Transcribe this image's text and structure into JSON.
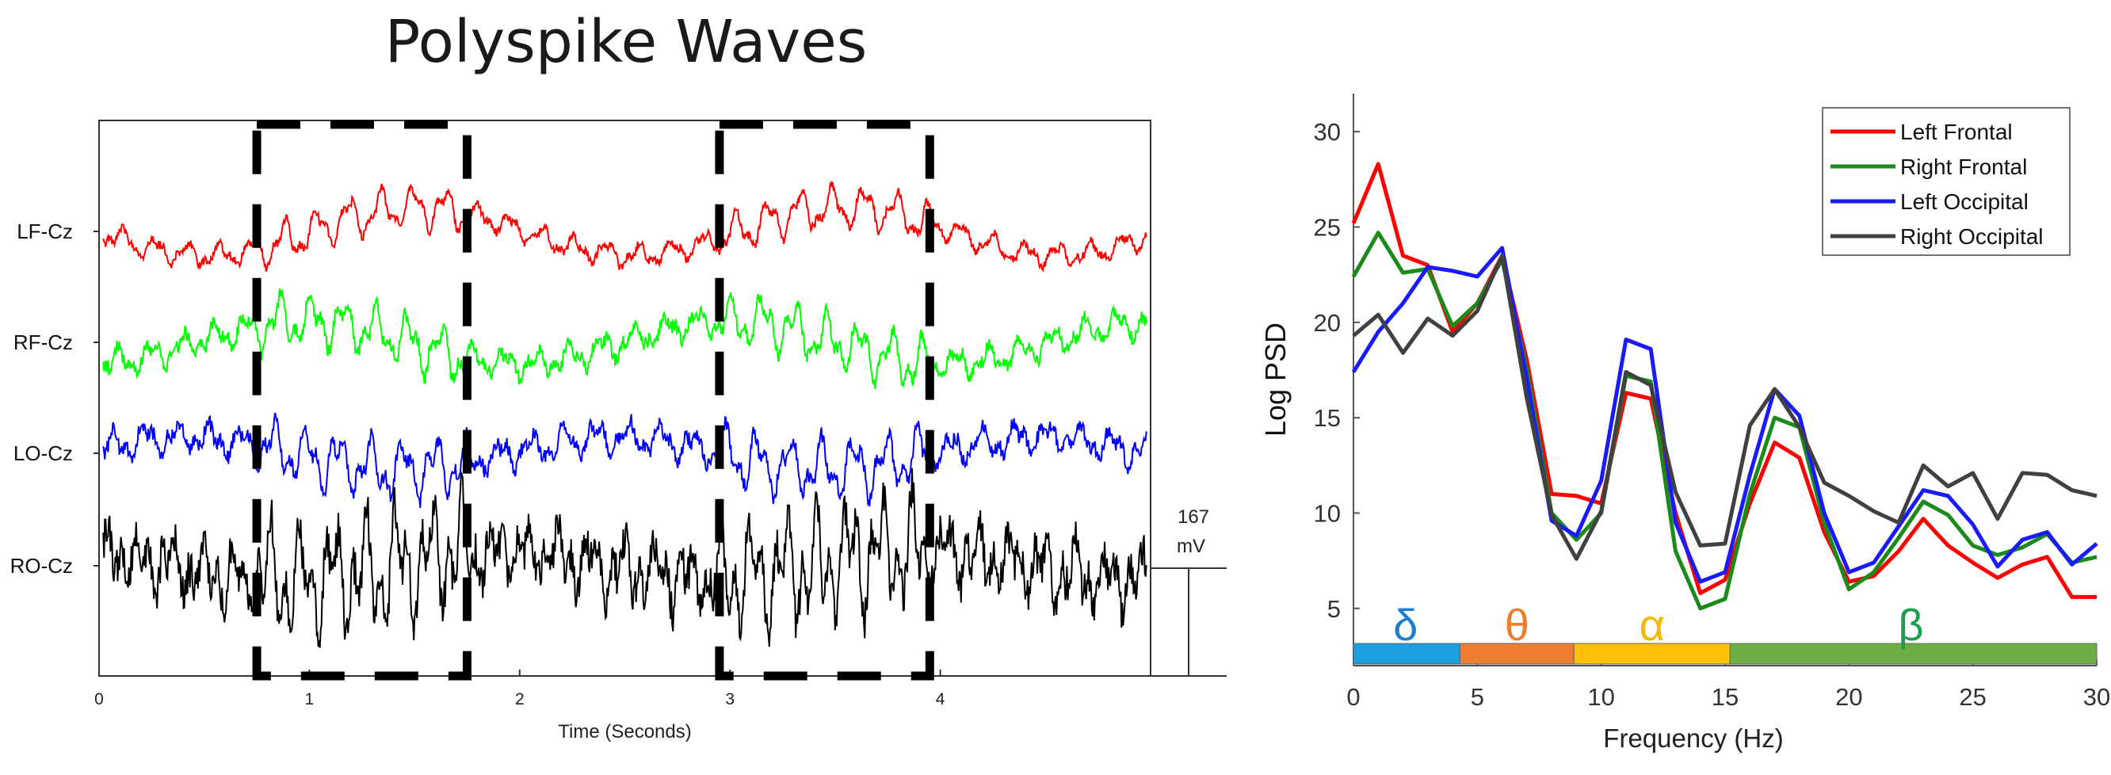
{
  "title": "Polyspike Waves",
  "chart_data": [
    {
      "type": "line",
      "xlabel": "Time (Seconds)",
      "ylabel": "",
      "xlim": [
        0,
        5
      ],
      "xticks": [
        0,
        1,
        2,
        3,
        4
      ],
      "grid": false,
      "channels": [
        {
          "label": "LF-Cz",
          "color": "#ff0000"
        },
        {
          "label": "RF-Cz",
          "color": "#00ff00"
        },
        {
          "label": "LO-Cz",
          "color": "#0000ff"
        },
        {
          "label": "RO-Cz",
          "color": "#000000"
        }
      ],
      "highlight_windows_seconds": [
        [
          0.75,
          1.75
        ],
        [
          2.95,
          3.95
        ]
      ],
      "scale_bar": {
        "value": "167",
        "unit": "mV"
      }
    },
    {
      "type": "line",
      "xlabel": "Frequency (Hz)",
      "ylabel": "Log PSD",
      "xlim": [
        0,
        30
      ],
      "ylim": [
        2,
        32
      ],
      "xticks": [
        0,
        5,
        10,
        15,
        20,
        25,
        30
      ],
      "yticks": [
        5,
        10,
        15,
        20,
        25,
        30
      ],
      "grid": false,
      "legend_position": "top-right",
      "x": [
        0,
        1,
        2,
        3,
        4,
        5,
        6,
        7,
        8,
        9,
        10,
        11,
        12,
        13,
        14,
        15,
        16,
        17,
        18,
        19,
        20,
        21,
        22,
        23,
        24,
        25,
        26,
        27,
        28,
        29,
        30
      ],
      "series": [
        {
          "name": "Left Frontal",
          "color": "#ff0000",
          "values": [
            25.2,
            28.3,
            23.5,
            23.0,
            19.5,
            21.0,
            23.5,
            18.0,
            11.0,
            10.9,
            10.5,
            16.3,
            16.0,
            10.0,
            5.8,
            6.5,
            10.5,
            13.7,
            12.9,
            9.0,
            6.4,
            6.7,
            8.0,
            9.7,
            8.3,
            7.4,
            6.6,
            7.3,
            7.7,
            5.6,
            5.6
          ]
        },
        {
          "name": "Right Frontal",
          "color": "#1a8a1a",
          "values": [
            22.4,
            24.7,
            22.6,
            22.8,
            19.8,
            21.0,
            23.3,
            17.5,
            10.0,
            8.6,
            10.0,
            17.2,
            16.9,
            8.0,
            5.0,
            5.5,
            11.0,
            15.0,
            14.5,
            9.5,
            6.0,
            6.9,
            8.7,
            10.6,
            9.9,
            8.3,
            7.8,
            8.2,
            8.9,
            7.4,
            7.7
          ]
        },
        {
          "name": "Left Occipital",
          "color": "#1a1aff",
          "values": [
            17.4,
            19.5,
            21.0,
            22.9,
            22.7,
            22.4,
            23.9,
            17.0,
            9.6,
            8.8,
            11.7,
            19.1,
            18.6,
            9.5,
            6.4,
            6.9,
            12.0,
            16.5,
            15.1,
            10.0,
            6.9,
            7.4,
            9.3,
            11.2,
            10.9,
            9.4,
            7.2,
            8.6,
            9.0,
            7.3,
            8.4
          ]
        },
        {
          "name": "Right Occipital",
          "color": "#404040",
          "values": [
            19.3,
            20.4,
            18.4,
            20.2,
            19.3,
            20.6,
            23.5,
            16.0,
            9.9,
            7.6,
            10.1,
            17.4,
            16.7,
            11.1,
            8.3,
            8.4,
            14.6,
            16.5,
            14.5,
            11.6,
            10.9,
            10.1,
            9.5,
            12.5,
            11.4,
            12.1,
            9.7,
            12.1,
            12.0,
            11.2,
            10.9
          ]
        }
      ],
      "bands": [
        {
          "symbol": "δ",
          "range": [
            0,
            4.3
          ],
          "color": "#1b9fe0",
          "text_color": "#1b7fd0"
        },
        {
          "symbol": "θ",
          "range": [
            4.3,
            8.9
          ],
          "color": "#ee7d31",
          "text_color": "#ee7d31"
        },
        {
          "symbol": "α",
          "range": [
            8.9,
            15.2
          ],
          "color": "#fec107",
          "text_color": "#f5b800"
        },
        {
          "symbol": "β",
          "range": [
            15.2,
            30
          ],
          "color": "#6eae47",
          "text_color": "#1f9f4e"
        }
      ]
    }
  ]
}
